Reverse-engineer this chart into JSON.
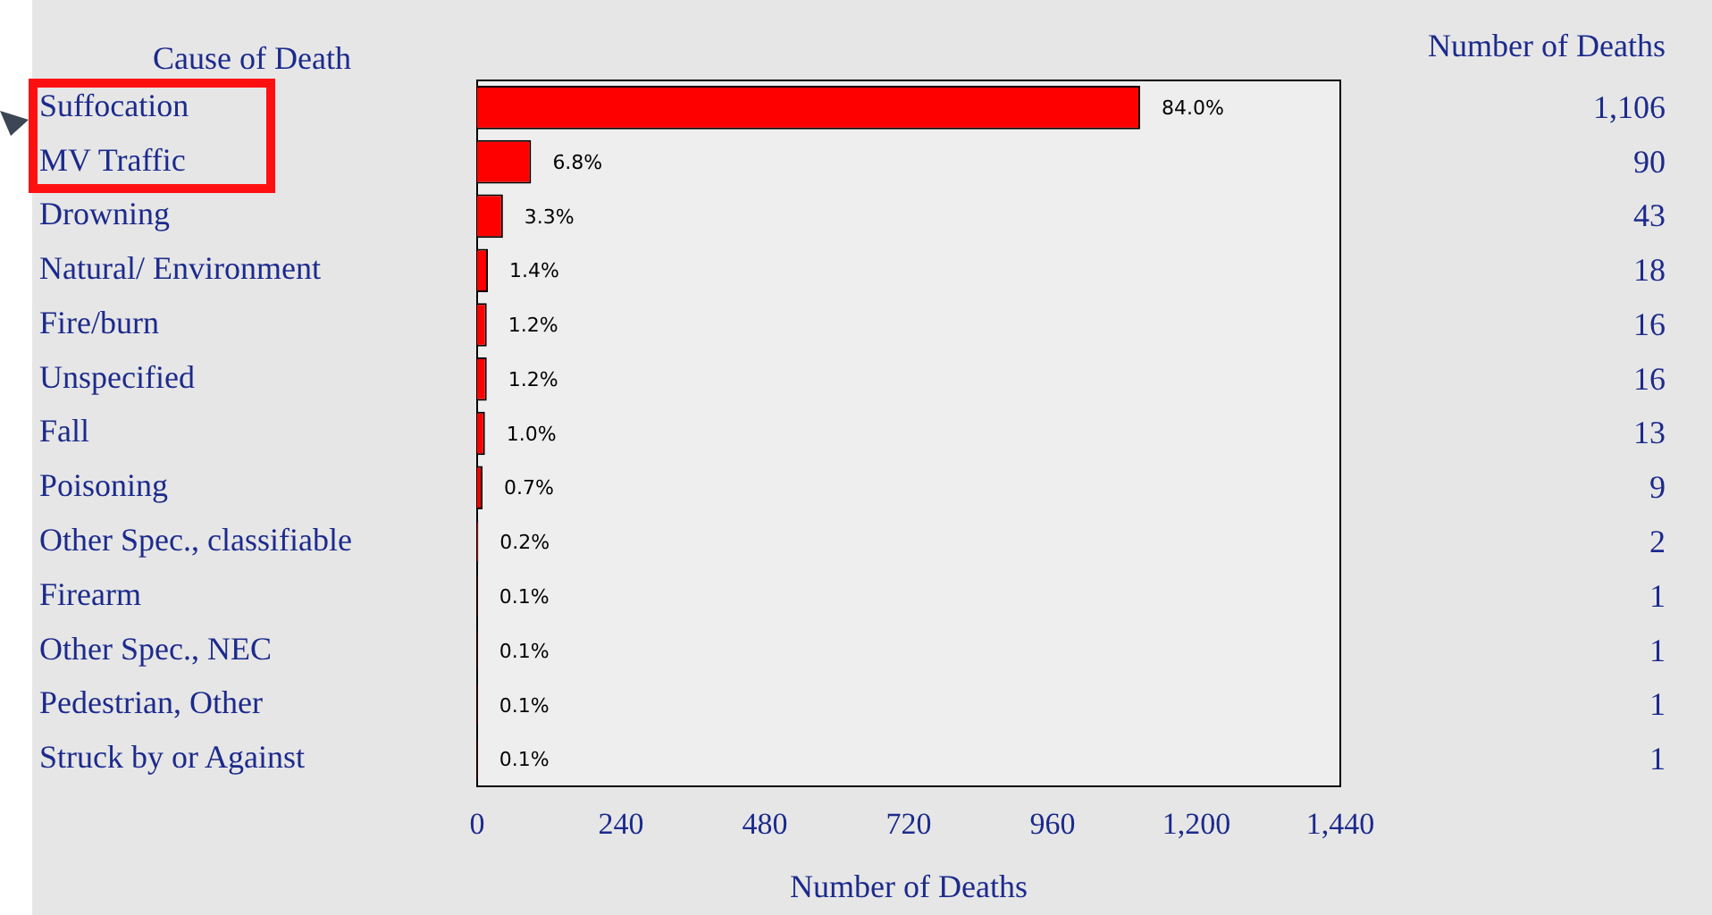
{
  "chart_data": {
    "type": "bar",
    "orientation": "horizontal",
    "ylabel": "Cause of Death",
    "xlabel": "Number of Deaths",
    "categories": [
      "Suffocation",
      "MV Traffic",
      "Drowning",
      "Natural/ Environment",
      "Fire/burn",
      "Unspecified",
      "Fall",
      "Poisoning",
      "Other Spec., classifiable",
      "Firearm",
      "Other Spec., NEC",
      "Pedestrian, Other",
      "Struck by or Against"
    ],
    "values": [
      1106,
      90,
      43,
      18,
      16,
      16,
      13,
      9,
      2,
      1,
      1,
      1,
      1
    ],
    "color": "#ff0000",
    "value_labels": [
      "1,106",
      "90",
      "43",
      "18",
      "16",
      "16",
      "13",
      "9",
      "2",
      "1",
      "1",
      "1",
      "1"
    ],
    "annotations": [
      "Number of Deaths",
      {
        "text": "84.0%",
        "x": 1106,
        "y": "Suffocation"
      },
      {
        "text": "6.8%",
        "x": 90,
        "y": "MV Traffic"
      },
      {
        "text": "3.3%",
        "x": 43,
        "y": "Drowning"
      },
      {
        "text": "1.4%",
        "x": 18,
        "y": "Natural/ Environment"
      },
      {
        "text": "1.2%",
        "x": 16,
        "y": "Fire/burn"
      },
      {
        "text": "1.2%",
        "x": 16,
        "y": "Unspecified"
      },
      {
        "text": "1.0%",
        "x": 13,
        "y": "Fall"
      },
      {
        "text": "0.7%",
        "x": 9,
        "y": "Poisoning"
      },
      {
        "text": "0.2%",
        "x": 2,
        "y": "Other Spec., classifiable"
      },
      {
        "text": "0.1%",
        "x": 1,
        "y": "Firearm"
      },
      {
        "text": "0.1%",
        "x": 1,
        "y": "Other Spec., NEC"
      },
      {
        "text": "0.1%",
        "x": 1,
        "y": "Pedestrian, Other"
      },
      {
        "text": "0.1%",
        "x": 1,
        "y": "Struck by or Against"
      }
    ],
    "xlim": [
      0,
      1440
    ],
    "xticks": [
      0,
      240,
      480,
      720,
      960,
      {
        "value": 1200,
        "label": "1,200"
      },
      {
        "value": 1440,
        "label": "1,440"
      }
    ]
  }
}
